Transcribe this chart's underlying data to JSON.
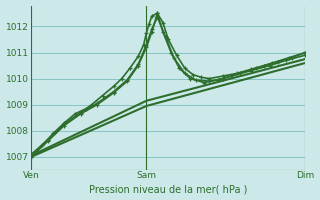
{
  "bg_color": "#cce8e8",
  "grid_color": "#88c4c4",
  "line_color": "#2d6e2d",
  "marker": "+",
  "xlabel": "Pression niveau de la mer( hPa )",
  "xlabel_color": "#2d6e2d",
  "tick_color": "#2d6e2d",
  "ylim": [
    1006.5,
    1012.8
  ],
  "yticks": [
    1007,
    1008,
    1009,
    1010,
    1011,
    1012
  ],
  "xtick_labels": [
    "Ven",
    "Sam",
    "Dim"
  ],
  "xtick_positions": [
    0.0,
    0.42,
    1.0
  ],
  "vlines": [
    0.0,
    0.42,
    1.0
  ],
  "lines": [
    {
      "pts": [
        0.0,
        1007.0,
        0.04,
        1007.45,
        0.08,
        1007.9,
        0.12,
        1008.3,
        0.16,
        1008.65,
        0.2,
        1008.85,
        0.22,
        1009.0,
        0.26,
        1009.35,
        0.3,
        1009.7,
        0.33,
        1010.0,
        0.36,
        1010.4,
        0.39,
        1010.85,
        0.41,
        1011.3,
        0.42,
        1011.75,
        0.43,
        1012.1,
        0.44,
        1012.4,
        0.46,
        1012.5,
        0.48,
        1012.15,
        0.5,
        1011.5,
        0.53,
        1010.9,
        0.56,
        1010.4,
        0.59,
        1010.15,
        0.62,
        1010.05,
        0.65,
        1010.0,
        0.7,
        1010.1,
        0.75,
        1010.2,
        0.8,
        1010.35,
        0.85,
        1010.5,
        0.9,
        1010.65,
        0.95,
        1010.8,
        1.0,
        1011.0
      ],
      "lw": 1.2,
      "ms": 3.5
    },
    {
      "pts": [
        0.0,
        1007.0,
        0.06,
        1007.6,
        0.12,
        1008.2,
        0.18,
        1008.65,
        0.24,
        1009.0,
        0.3,
        1009.45,
        0.35,
        1009.9,
        0.39,
        1010.5,
        0.42,
        1011.2,
        0.44,
        1011.8,
        0.46,
        1012.5,
        0.48,
        1011.8,
        0.51,
        1011.0,
        0.54,
        1010.4,
        0.58,
        1010.0,
        0.63,
        1009.85,
        0.68,
        1009.95,
        0.73,
        1010.1,
        0.8,
        1010.3,
        0.87,
        1010.5,
        0.93,
        1010.7,
        1.0,
        1010.9
      ],
      "lw": 1.2,
      "ms": 3.5
    },
    {
      "pts": [
        0.0,
        1007.1,
        0.06,
        1007.65,
        0.12,
        1008.25,
        0.18,
        1008.7,
        0.24,
        1009.05,
        0.3,
        1009.5,
        0.35,
        1009.95,
        0.39,
        1010.55,
        0.42,
        1011.3,
        0.44,
        1011.9,
        0.46,
        1012.35,
        0.49,
        1011.6,
        0.52,
        1010.8,
        0.56,
        1010.2,
        0.6,
        1009.95,
        0.65,
        1009.9,
        0.7,
        1010.0,
        0.76,
        1010.2,
        0.82,
        1010.4,
        0.88,
        1010.6,
        0.94,
        1010.8,
        1.0,
        1011.0
      ],
      "lw": 1.2,
      "ms": 3.5
    },
    {
      "pts": [
        0.0,
        1007.05,
        0.42,
        1009.15,
        1.0,
        1010.75
      ],
      "lw": 1.5,
      "ms": 0
    },
    {
      "pts": [
        0.0,
        1007.0,
        0.42,
        1008.95,
        1.0,
        1010.6
      ],
      "lw": 1.5,
      "ms": 0
    }
  ]
}
